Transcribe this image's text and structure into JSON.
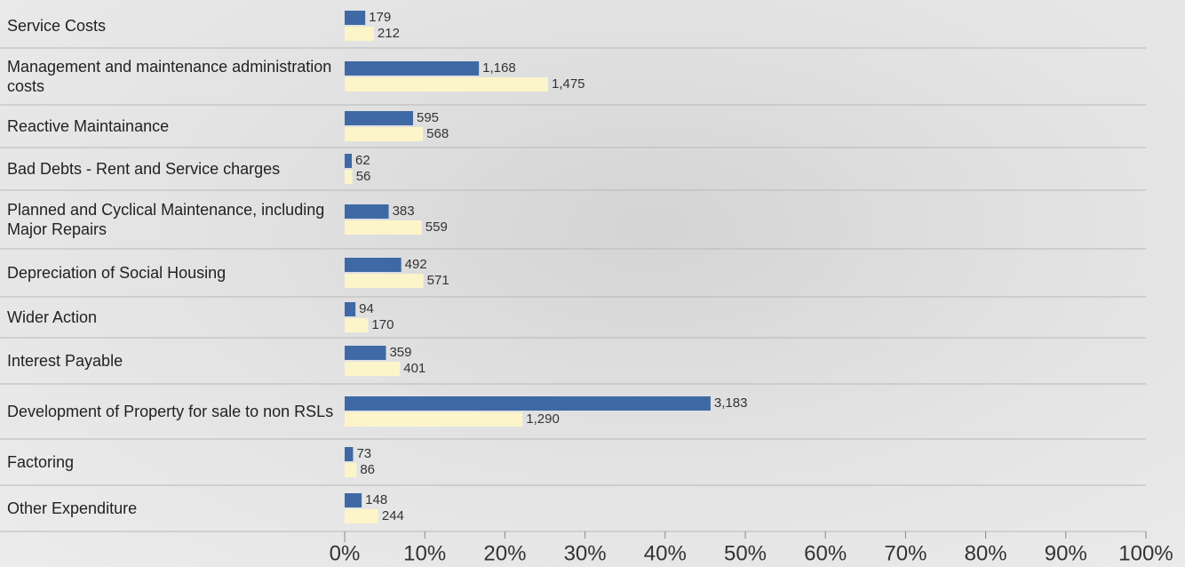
{
  "chart_data": {
    "type": "bar",
    "orientation": "horizontal",
    "categories": [
      "Service Costs",
      "Management and maintenance administration costs",
      "Reactive Maintainance",
      "Bad Debts - Rent and Service charges",
      "Planned and Cyclical Maintenance, including Major Repairs",
      "Depreciation of Social Housing",
      "Wider Action",
      "Interest Payable",
      "Development of Property for sale to non RSLs",
      "Factoring",
      "Other Expenditure"
    ],
    "series": [
      {
        "color": "#3f69a5",
        "xlim": [
          0,
          6970
        ],
        "values": [
          179,
          1168,
          595,
          62,
          383,
          492,
          94,
          359,
          3183,
          73,
          148
        ],
        "value_labels": [
          "179",
          "1,168",
          "595",
          "62",
          "383",
          "492",
          "94",
          "359",
          "3,183",
          "73",
          "148"
        ]
      },
      {
        "color": "#fbf5c9",
        "xlim": [
          0,
          5810
        ],
        "values": [
          212,
          1475,
          568,
          56,
          559,
          571,
          170,
          401,
          1290,
          86,
          244
        ],
        "value_labels": [
          "212",
          "1,475",
          "568",
          "56",
          "559",
          "571",
          "170",
          "401",
          "1,290",
          "86",
          "244"
        ]
      }
    ],
    "xlim": [
      0,
      100
    ],
    "xticks": [
      {
        "value": 0,
        "label": "0%"
      },
      {
        "value": 10,
        "label": "10%"
      },
      {
        "value": 20,
        "label": "20%"
      },
      {
        "value": 30,
        "label": "30%"
      },
      {
        "value": 40,
        "label": "40%"
      },
      {
        "value": 50,
        "label": "50%"
      },
      {
        "value": 60,
        "label": "60%"
      },
      {
        "value": 70,
        "label": "70%"
      },
      {
        "value": 80,
        "label": "80%"
      },
      {
        "value": 90,
        "label": "90%"
      },
      {
        "value": 100,
        "label": "100%"
      }
    ]
  }
}
